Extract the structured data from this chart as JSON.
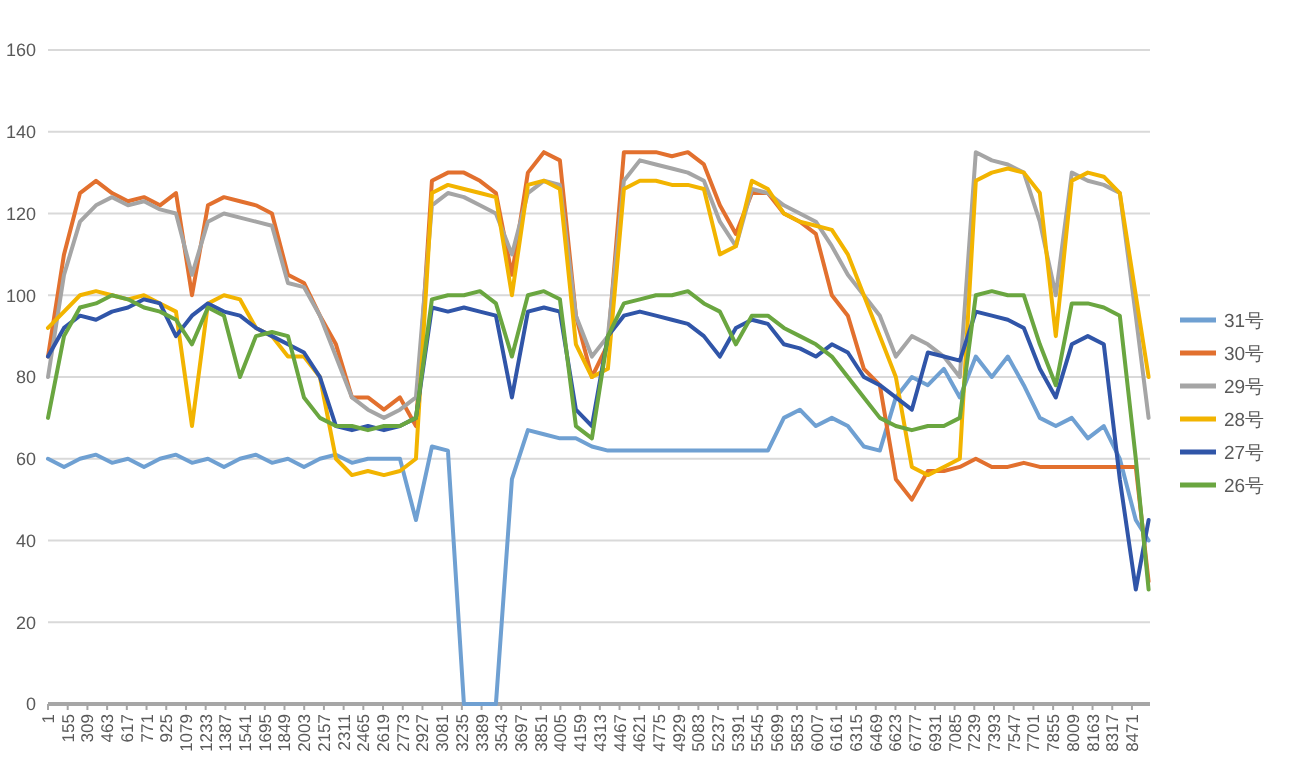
{
  "chart_data": {
    "type": "line",
    "grid": "y",
    "legend": "right",
    "x": [
      1,
      126,
      251,
      376,
      501,
      626,
      751,
      876,
      1001,
      1126,
      1251,
      1376,
      1501,
      1626,
      1751,
      1876,
      2001,
      2126,
      2251,
      2376,
      2501,
      2626,
      2751,
      2876,
      3001,
      3126,
      3251,
      3376,
      3501,
      3626,
      3751,
      3876,
      4001,
      4126,
      4251,
      4376,
      4501,
      4626,
      4751,
      4876,
      5001,
      5126,
      5251,
      5376,
      5501,
      5626,
      5751,
      5876,
      6001,
      6126,
      6251,
      6376,
      6501,
      6626,
      6751,
      6876,
      7001,
      7126,
      7251,
      7376,
      7501,
      7626,
      7751,
      7876,
      8001,
      8126,
      8251,
      8376,
      8501,
      8601
    ],
    "xlim": [
      1,
      8612
    ],
    "xticks": [
      1,
      155,
      309,
      463,
      617,
      771,
      925,
      1079,
      1233,
      1387,
      1541,
      1695,
      1849,
      2003,
      2157,
      2311,
      2465,
      2619,
      2773,
      2927,
      3081,
      3235,
      3389,
      3543,
      3697,
      3851,
      4005,
      4159,
      4313,
      4467,
      4621,
      4775,
      4929,
      5083,
      5237,
      5391,
      5545,
      5699,
      5853,
      6007,
      6161,
      6315,
      6469,
      6623,
      6777,
      6931,
      7085,
      7239,
      7393,
      7547,
      7701,
      7855,
      8009,
      8163,
      8317,
      8471
    ],
    "ylim": [
      0,
      160
    ],
    "yticks": [
      0,
      20,
      40,
      60,
      80,
      100,
      120,
      140,
      160
    ],
    "series": [
      {
        "name": "31号",
        "color": "#6fa0d2",
        "values": [
          60,
          58,
          60,
          61,
          59,
          60,
          58,
          60,
          61,
          59,
          60,
          58,
          60,
          61,
          59,
          60,
          58,
          60,
          61,
          59,
          60,
          60,
          60,
          45,
          63,
          62,
          0,
          0,
          0,
          55,
          67,
          66,
          65,
          65,
          63,
          62,
          62,
          62,
          62,
          62,
          62,
          62,
          62,
          62,
          62,
          62,
          70,
          72,
          68,
          70,
          68,
          63,
          62,
          75,
          80,
          78,
          82,
          75,
          85,
          80,
          85,
          78,
          70,
          68,
          70,
          65,
          68,
          60,
          45,
          40
        ]
      },
      {
        "name": "30号",
        "color": "#e2702e",
        "values": [
          85,
          110,
          125,
          128,
          125,
          123,
          124,
          122,
          125,
          100,
          122,
          124,
          123,
          122,
          120,
          105,
          103,
          95,
          88,
          75,
          75,
          72,
          75,
          68,
          128,
          130,
          130,
          128,
          125,
          105,
          130,
          135,
          133,
          95,
          80,
          88,
          135,
          135,
          135,
          134,
          135,
          132,
          122,
          115,
          125,
          125,
          120,
          118,
          115,
          100,
          95,
          82,
          78,
          55,
          50,
          57,
          57,
          58,
          60,
          58,
          58,
          59,
          58,
          58,
          58,
          58,
          58,
          58,
          58,
          30
        ]
      },
      {
        "name": "29号",
        "color": "#a5a5a5",
        "values": [
          80,
          105,
          118,
          122,
          124,
          122,
          123,
          121,
          120,
          105,
          118,
          120,
          119,
          118,
          117,
          103,
          102,
          95,
          85,
          75,
          72,
          70,
          72,
          75,
          122,
          125,
          124,
          122,
          120,
          110,
          125,
          128,
          127,
          95,
          85,
          90,
          128,
          133,
          132,
          131,
          130,
          128,
          118,
          112,
          126,
          125,
          122,
          120,
          118,
          112,
          105,
          100,
          95,
          85,
          90,
          88,
          85,
          80,
          135,
          133,
          132,
          130,
          118,
          100,
          130,
          128,
          127,
          125,
          95,
          70
        ]
      },
      {
        "name": "28号",
        "color": "#f2b400",
        "values": [
          92,
          96,
          100,
          101,
          100,
          99,
          100,
          98,
          96,
          68,
          98,
          100,
          99,
          92,
          90,
          85,
          85,
          80,
          60,
          56,
          57,
          56,
          57,
          60,
          125,
          127,
          126,
          125,
          124,
          100,
          127,
          128,
          126,
          88,
          80,
          82,
          126,
          128,
          128,
          127,
          127,
          126,
          110,
          112,
          128,
          126,
          120,
          118,
          117,
          116,
          110,
          100,
          90,
          80,
          58,
          56,
          58,
          60,
          128,
          130,
          131,
          130,
          125,
          90,
          128,
          130,
          129,
          125,
          100,
          80
        ]
      },
      {
        "name": "27号",
        "color": "#3055a8",
        "values": [
          85,
          92,
          95,
          94,
          96,
          97,
          99,
          98,
          90,
          95,
          98,
          96,
          95,
          92,
          90,
          88,
          86,
          80,
          68,
          67,
          68,
          67,
          68,
          70,
          97,
          96,
          97,
          96,
          95,
          75,
          96,
          97,
          96,
          72,
          68,
          90,
          95,
          96,
          95,
          94,
          93,
          90,
          85,
          92,
          94,
          93,
          88,
          87,
          85,
          88,
          86,
          80,
          78,
          75,
          72,
          86,
          85,
          84,
          96,
          95,
          94,
          92,
          82,
          75,
          88,
          90,
          88,
          55,
          28,
          45
        ]
      },
      {
        "name": "26号",
        "color": "#6aa640",
        "values": [
          70,
          90,
          97,
          98,
          100,
          99,
          97,
          96,
          94,
          88,
          97,
          95,
          80,
          90,
          91,
          90,
          75,
          70,
          68,
          68,
          67,
          68,
          68,
          70,
          99,
          100,
          100,
          101,
          98,
          85,
          100,
          101,
          99,
          68,
          65,
          90,
          98,
          99,
          100,
          100,
          101,
          98,
          96,
          88,
          95,
          95,
          92,
          90,
          88,
          85,
          80,
          75,
          70,
          68,
          67,
          68,
          68,
          70,
          100,
          101,
          100,
          100,
          88,
          78,
          98,
          98,
          97,
          95,
          60,
          28
        ]
      }
    ]
  }
}
